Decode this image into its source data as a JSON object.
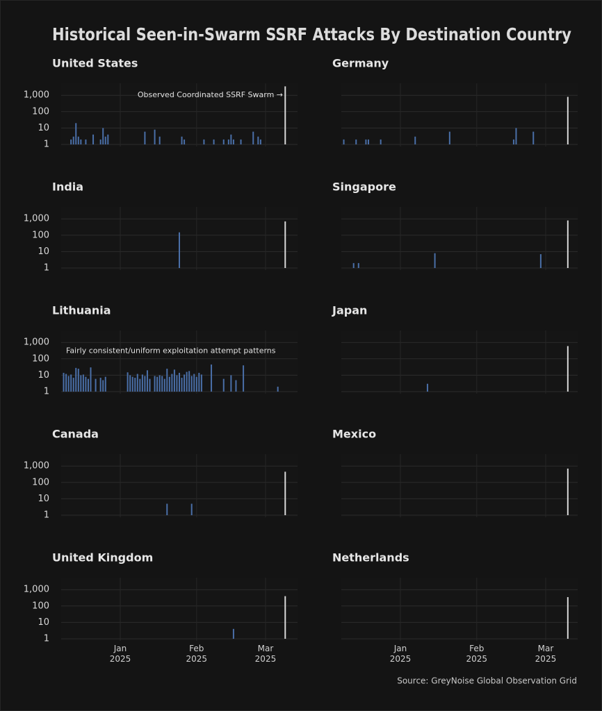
{
  "title": "Historical Seen-in-Swarm SSRF Attacks By Destination Country",
  "source": "Source: GreyNoise Global Observation Grid",
  "chart_data": [
    {
      "type": "bar",
      "title": "United States",
      "log_y": true,
      "grid": true,
      "y_tick_labels": true,
      "x_tick_labels": false,
      "ylim": [
        1,
        4000
      ],
      "yticks": [
        1,
        10,
        100,
        {
          "value": 1000,
          "label": "1,000"
        }
      ],
      "xlim": [
        "2024-12-08",
        "2025-03-14"
      ],
      "xticks": [
        "2025-01-01",
        "2025-02-01",
        "2025-03-01"
      ],
      "annotation": "Observed Coordinated SSRF Swarm →",
      "annotation_anchor": "top-right",
      "series": [
        {
          "color": "#4a6fa8",
          "x": [
            "2024-12-12",
            "2024-12-13",
            "2024-12-14",
            "2024-12-15",
            "2024-12-16",
            "2024-12-18",
            "2024-12-21",
            "2024-12-24",
            "2024-12-25",
            "2024-12-26",
            "2024-12-27",
            "2025-01-11",
            "2025-01-15",
            "2025-01-17",
            "2025-01-26",
            "2025-01-27",
            "2025-02-04",
            "2025-02-08",
            "2025-02-12",
            "2025-02-14",
            "2025-02-15",
            "2025-02-16",
            "2025-02-19",
            "2025-02-24",
            "2025-02-26",
            "2025-02-27"
          ],
          "values": [
            2,
            3,
            20,
            3,
            2,
            2,
            4,
            2,
            10,
            3,
            4,
            6,
            8,
            3,
            3,
            2,
            2,
            2,
            2,
            2,
            4,
            2,
            2,
            6,
            3,
            2
          ]
        },
        {
          "color": "#d9d9d9",
          "x": [
            "2025-03-09"
          ],
          "values": [
            3500
          ]
        }
      ]
    },
    {
      "type": "bar",
      "title": "Germany",
      "log_y": true,
      "grid": true,
      "y_tick_labels": false,
      "x_tick_labels": false,
      "ylim": [
        1,
        4000
      ],
      "yticks": [
        1,
        10,
        100,
        1000
      ],
      "xlim": [
        "2024-12-08",
        "2025-03-14"
      ],
      "xticks": [
        "2025-01-01",
        "2025-02-01",
        "2025-03-01"
      ],
      "series": [
        {
          "color": "#4a6fa8",
          "x": [
            "2024-12-09",
            "2024-12-14",
            "2024-12-18",
            "2024-12-19",
            "2024-12-24",
            "2025-01-07",
            "2025-01-21",
            "2025-02-16",
            "2025-02-17",
            "2025-02-24"
          ],
          "values": [
            2,
            2,
            2,
            2,
            2,
            3,
            6,
            2,
            10,
            6
          ]
        },
        {
          "color": "#d9d9d9",
          "x": [
            "2025-03-10"
          ],
          "values": [
            800
          ]
        }
      ]
    },
    {
      "type": "bar",
      "title": "India",
      "log_y": true,
      "grid": true,
      "y_tick_labels": true,
      "x_tick_labels": false,
      "ylim": [
        1,
        4000
      ],
      "yticks": [
        1,
        10,
        100,
        {
          "value": 1000,
          "label": "1,000"
        }
      ],
      "xlim": [
        "2024-12-08",
        "2025-03-14"
      ],
      "xticks": [
        "2025-01-01",
        "2025-02-01",
        "2025-03-01"
      ],
      "series": [
        {
          "color": "#4a6fa8",
          "x": [
            "2025-01-25"
          ],
          "values": [
            150
          ]
        },
        {
          "color": "#d9d9d9",
          "x": [
            "2025-03-09"
          ],
          "values": [
            700
          ]
        }
      ]
    },
    {
      "type": "bar",
      "title": "Singapore",
      "log_y": true,
      "grid": true,
      "y_tick_labels": false,
      "x_tick_labels": false,
      "ylim": [
        1,
        4000
      ],
      "yticks": [
        1,
        10,
        100,
        1000
      ],
      "xlim": [
        "2024-12-08",
        "2025-03-14"
      ],
      "xticks": [
        "2025-01-01",
        "2025-02-01",
        "2025-03-01"
      ],
      "series": [
        {
          "color": "#4a6fa8",
          "x": [
            "2024-12-13",
            "2024-12-15",
            "2025-01-15",
            "2025-02-27"
          ],
          "values": [
            2,
            2,
            8,
            7
          ]
        },
        {
          "color": "#d9d9d9",
          "x": [
            "2025-03-10"
          ],
          "values": [
            800
          ]
        }
      ]
    },
    {
      "type": "bar",
      "title": "Lithuania",
      "log_y": true,
      "grid": true,
      "y_tick_labels": true,
      "x_tick_labels": false,
      "ylim": [
        1,
        4000
      ],
      "yticks": [
        1,
        10,
        100,
        {
          "value": 1000,
          "label": "1,000"
        }
      ],
      "xlim": [
        "2024-12-08",
        "2025-03-14"
      ],
      "xticks": [
        "2025-01-01",
        "2025-02-01",
        "2025-03-01"
      ],
      "annotation": "Fairly consistent/uniform exploitation attempt patterns",
      "annotation_anchor": "top-left",
      "series": [
        {
          "color": "#4a6fa8",
          "x": [
            "2024-12-09",
            "2024-12-10",
            "2024-12-11",
            "2024-12-12",
            "2024-12-13",
            "2024-12-14",
            "2024-12-15",
            "2024-12-16",
            "2024-12-17",
            "2024-12-18",
            "2024-12-19",
            "2024-12-20",
            "2024-12-22",
            "2024-12-24",
            "2024-12-25",
            "2024-12-26",
            "2025-01-04",
            "2025-01-05",
            "2025-01-06",
            "2025-01-07",
            "2025-01-08",
            "2025-01-09",
            "2025-01-10",
            "2025-01-11",
            "2025-01-12",
            "2025-01-13",
            "2025-01-15",
            "2025-01-16",
            "2025-01-17",
            "2025-01-18",
            "2025-01-19",
            "2025-01-20",
            "2025-01-21",
            "2025-01-22",
            "2025-01-23",
            "2025-01-24",
            "2025-01-25",
            "2025-01-26",
            "2025-01-27",
            "2025-01-28",
            "2025-01-29",
            "2025-01-30",
            "2025-01-31",
            "2025-02-01",
            "2025-02-02",
            "2025-02-03",
            "2025-02-07",
            "2025-02-12",
            "2025-02-15",
            "2025-02-17",
            "2025-02-20",
            "2025-03-06"
          ],
          "values": [
            14,
            12,
            9,
            11,
            7,
            28,
            25,
            10,
            11,
            8,
            6,
            30,
            6,
            7,
            5,
            8,
            15,
            10,
            8,
            7,
            12,
            6,
            11,
            9,
            20,
            6,
            9,
            8,
            10,
            9,
            6,
            25,
            8,
            12,
            22,
            10,
            14,
            7,
            11,
            16,
            18,
            9,
            12,
            8,
            14,
            11,
            45,
            6,
            10,
            5,
            40,
            2
          ]
        }
      ]
    },
    {
      "type": "bar",
      "title": "Japan",
      "log_y": true,
      "grid": true,
      "y_tick_labels": false,
      "x_tick_labels": false,
      "ylim": [
        1,
        4000
      ],
      "yticks": [
        1,
        10,
        100,
        1000
      ],
      "xlim": [
        "2024-12-08",
        "2025-03-14"
      ],
      "xticks": [
        "2025-01-01",
        "2025-02-01",
        "2025-03-01"
      ],
      "series": [
        {
          "color": "#4a6fa8",
          "x": [
            "2025-01-12"
          ],
          "values": [
            3
          ]
        },
        {
          "color": "#d9d9d9",
          "x": [
            "2025-03-10"
          ],
          "values": [
            600
          ]
        }
      ]
    },
    {
      "type": "bar",
      "title": "Canada",
      "log_y": true,
      "grid": true,
      "y_tick_labels": true,
      "x_tick_labels": false,
      "ylim": [
        1,
        4000
      ],
      "yticks": [
        1,
        10,
        100,
        {
          "value": 1000,
          "label": "1,000"
        }
      ],
      "xlim": [
        "2024-12-08",
        "2025-03-14"
      ],
      "xticks": [
        "2025-01-01",
        "2025-02-01",
        "2025-03-01"
      ],
      "series": [
        {
          "color": "#4a6fa8",
          "x": [
            "2025-01-20",
            "2025-01-30"
          ],
          "values": [
            5,
            5
          ]
        },
        {
          "color": "#d9d9d9",
          "x": [
            "2025-03-09"
          ],
          "values": [
            450
          ]
        }
      ]
    },
    {
      "type": "bar",
      "title": "Mexico",
      "log_y": true,
      "grid": true,
      "y_tick_labels": false,
      "x_tick_labels": false,
      "ylim": [
        1,
        4000
      ],
      "yticks": [
        1,
        10,
        100,
        1000
      ],
      "xlim": [
        "2024-12-08",
        "2025-03-14"
      ],
      "xticks": [
        "2025-01-01",
        "2025-02-01",
        "2025-03-01"
      ],
      "series": [
        {
          "color": "#d9d9d9",
          "x": [
            "2025-03-10"
          ],
          "values": [
            700
          ]
        }
      ]
    },
    {
      "type": "bar",
      "title": "United Kingdom",
      "log_y": true,
      "grid": true,
      "y_tick_labels": true,
      "x_tick_labels": true,
      "ylim": [
        1,
        4000
      ],
      "yticks": [
        1,
        10,
        100,
        {
          "value": 1000,
          "label": "1,000"
        }
      ],
      "xlim": [
        "2024-12-08",
        "2025-03-14"
      ],
      "xticks": [
        {
          "value": "2025-01-01",
          "label": "Jan\n2025"
        },
        {
          "value": "2025-02-01",
          "label": "Feb\n2025"
        },
        {
          "value": "2025-03-01",
          "label": "Mar\n2025"
        }
      ],
      "series": [
        {
          "color": "#4a6fa8",
          "x": [
            "2025-02-16"
          ],
          "values": [
            4
          ]
        },
        {
          "color": "#d9d9d9",
          "x": [
            "2025-03-09"
          ],
          "values": [
            400
          ]
        }
      ]
    },
    {
      "type": "bar",
      "title": "Netherlands",
      "log_y": true,
      "grid": true,
      "y_tick_labels": false,
      "x_tick_labels": true,
      "ylim": [
        1,
        4000
      ],
      "yticks": [
        1,
        10,
        100,
        1000
      ],
      "xlim": [
        "2024-12-08",
        "2025-03-14"
      ],
      "xticks": [
        {
          "value": "2025-01-01",
          "label": "Jan\n2025"
        },
        {
          "value": "2025-02-01",
          "label": "Feb\n2025"
        },
        {
          "value": "2025-03-01",
          "label": "Mar\n2025"
        }
      ],
      "series": [
        {
          "color": "#d9d9d9",
          "x": [
            "2025-03-10"
          ],
          "values": [
            350
          ]
        }
      ]
    }
  ]
}
